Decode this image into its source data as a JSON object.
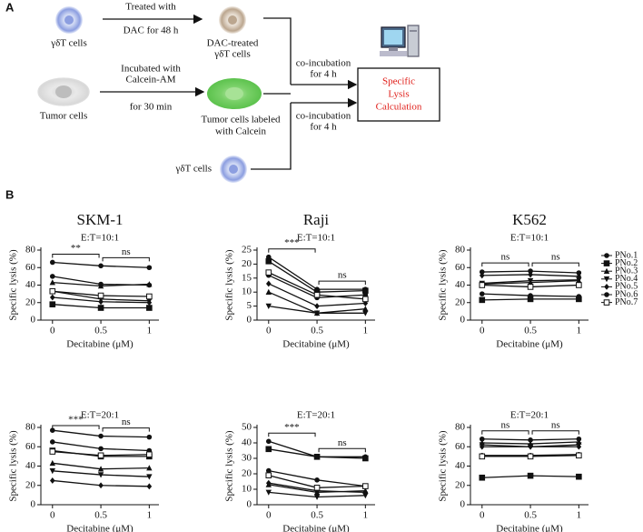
{
  "panel_labels": [
    "A",
    "B"
  ],
  "diagram": {
    "gdt_cells": "γδT cells",
    "treated_with": "Treated with",
    "dac_48h": "DAC for 48 h",
    "dac_treated": [
      "DAC-treated",
      "γδT cells"
    ],
    "tumor_cells": "Tumor cells",
    "incubated": [
      "Incubated with",
      "Calcein-AM"
    ],
    "for_30": "for 30 min",
    "labeled": [
      "Tumor cells labeled",
      "with  Calcein"
    ],
    "coinc_1": [
      "co-incubation",
      "for 4 h"
    ],
    "coinc_2": [
      "co-incubation",
      "for 4 h"
    ],
    "gdt_cells_2": "γδT cells",
    "result": [
      "Specific",
      "Lysis",
      "Calculation"
    ]
  },
  "legend": {
    "names": [
      "PNo.1",
      "PNo.2",
      "PNo.3",
      "PNo.4",
      "PNo.5",
      "PNo.6",
      "PNo.7"
    ],
    "markers": [
      "circle",
      "square",
      "triangle-up",
      "triangle-down",
      "diamond",
      "circle",
      "open-square"
    ],
    "color": "#111111"
  },
  "chart_data": [
    {
      "type": "line",
      "title": "SKM-1",
      "subtitle": "E:T=10:1",
      "x_label": "Decitabine (μM)",
      "y_label": "Specific lysis (%)",
      "x": [
        0,
        0.5,
        1
      ],
      "xlim": [
        -0.12,
        1.1
      ],
      "xticks": [
        0,
        0.5,
        1
      ],
      "ylim": [
        0,
        80
      ],
      "yticks": [
        0,
        20,
        40,
        60,
        80
      ],
      "annotations": [
        "**",
        "ns"
      ],
      "series": [
        {
          "values": [
            66,
            62,
            60
          ]
        },
        {
          "values": [
            18,
            14,
            14
          ]
        },
        {
          "values": [
            43,
            39,
            41
          ]
        },
        {
          "values": [
            33,
            24,
            22
          ]
        },
        {
          "values": [
            26,
            21,
            20
          ]
        },
        {
          "values": [
            50,
            41,
            40
          ]
        },
        {
          "values": [
            33,
            28,
            27
          ]
        }
      ]
    },
    {
      "type": "line",
      "title": "Raji",
      "subtitle": "E:T=10:1",
      "x_label": "Decitabine (μM)",
      "y_label": "Specific lysis (%)",
      "x": [
        0,
        0.5,
        1
      ],
      "xlim": [
        -0.12,
        1.1
      ],
      "xticks": [
        0,
        0.5,
        1
      ],
      "ylim": [
        0,
        25
      ],
      "yticks": [
        0,
        5,
        10,
        15,
        20,
        25
      ],
      "annotations": [
        "***",
        "ns"
      ],
      "series": [
        {
          "values": [
            22.5,
            11,
            11
          ]
        },
        {
          "values": [
            21,
            10,
            10.5
          ]
        },
        {
          "values": [
            10,
            2.5,
            4
          ]
        },
        {
          "values": [
            5,
            2.5,
            2.5
          ]
        },
        {
          "values": [
            13,
            5,
            6
          ]
        },
        {
          "values": [
            16,
            8,
            9
          ]
        },
        {
          "values": [
            17,
            9,
            7.5
          ]
        }
      ]
    },
    {
      "type": "line",
      "title": "K562",
      "subtitle": "E:T=10:1",
      "x_label": "Decitabine (μM)",
      "y_label": "Specific lysis (%)",
      "x": [
        0,
        0.5,
        1
      ],
      "xlim": [
        -0.12,
        1.1
      ],
      "xticks": [
        0,
        0.5,
        1
      ],
      "ylim": [
        0,
        80
      ],
      "yticks": [
        0,
        20,
        40,
        60,
        80
      ],
      "annotations": [
        "ns",
        "ns"
      ],
      "series": [
        {
          "values": [
            55,
            56,
            54
          ]
        },
        {
          "values": [
            23,
            24,
            24
          ]
        },
        {
          "values": [
            41,
            43,
            45
          ]
        },
        {
          "values": [
            42,
            45,
            46
          ]
        },
        {
          "values": [
            51,
            52,
            50
          ]
        },
        {
          "values": [
            30,
            28,
            27
          ]
        },
        {
          "values": [
            40,
            38,
            40
          ]
        }
      ]
    },
    {
      "type": "line",
      "subtitle": "E:T=20:1",
      "x_label": "Decitabine (μM)",
      "y_label": "Specific lysis (%)",
      "x": [
        0,
        0.5,
        1
      ],
      "xlim": [
        -0.12,
        1.1
      ],
      "xticks": [
        0,
        0.5,
        1
      ],
      "ylim": [
        0,
        80
      ],
      "yticks": [
        0,
        20,
        40,
        60,
        80
      ],
      "annotations": [
        "***",
        "ns"
      ],
      "series": [
        {
          "values": [
            77,
            71,
            70
          ]
        },
        {
          "values": [
            56,
            50,
            50
          ]
        },
        {
          "values": [
            43,
            37,
            38
          ]
        },
        {
          "values": [
            35,
            31,
            29
          ]
        },
        {
          "values": [
            25,
            20,
            19
          ]
        },
        {
          "values": [
            65,
            58,
            56
          ]
        },
        {
          "values": [
            55,
            51,
            52
          ]
        }
      ]
    },
    {
      "type": "line",
      "subtitle": "E:T=20:1",
      "x_label": "Decitabine (μM)",
      "y_label": "Specific lysis (%)",
      "x": [
        0,
        0.5,
        1
      ],
      "xlim": [
        -0.12,
        1.1
      ],
      "xticks": [
        0,
        0.5,
        1
      ],
      "ylim": [
        0,
        50
      ],
      "yticks": [
        0,
        10,
        20,
        30,
        40,
        50
      ],
      "annotations": [
        "***",
        "ns"
      ],
      "series": [
        {
          "values": [
            41,
            31,
            31
          ]
        },
        {
          "values": [
            36,
            31,
            30
          ]
        },
        {
          "values": [
            13,
            8,
            9
          ]
        },
        {
          "values": [
            8,
            5,
            6
          ]
        },
        {
          "values": [
            14,
            9,
            8
          ]
        },
        {
          "values": [
            22,
            16,
            12
          ]
        },
        {
          "values": [
            19,
            11,
            12
          ]
        }
      ]
    },
    {
      "type": "line",
      "subtitle": "E:T=20:1",
      "x_label": "Decitabine (μM)",
      "y_label": "Specific lysis (%)",
      "x": [
        0,
        0.5,
        1
      ],
      "xlim": [
        -0.12,
        1.1
      ],
      "xticks": [
        0,
        0.5,
        1
      ],
      "ylim": [
        0,
        80
      ],
      "yticks": [
        0,
        20,
        40,
        60,
        80
      ],
      "annotations": [
        "ns",
        "ns"
      ],
      "series": [
        {
          "values": [
            68,
            67,
            68
          ]
        },
        {
          "values": [
            28,
            30,
            29
          ]
        },
        {
          "values": [
            64,
            63,
            65
          ]
        },
        {
          "values": [
            62,
            60,
            62
          ]
        },
        {
          "values": [
            60,
            60,
            60
          ]
        },
        {
          "values": [
            51,
            51,
            52
          ]
        },
        {
          "values": [
            50,
            50,
            51
          ]
        }
      ]
    }
  ]
}
